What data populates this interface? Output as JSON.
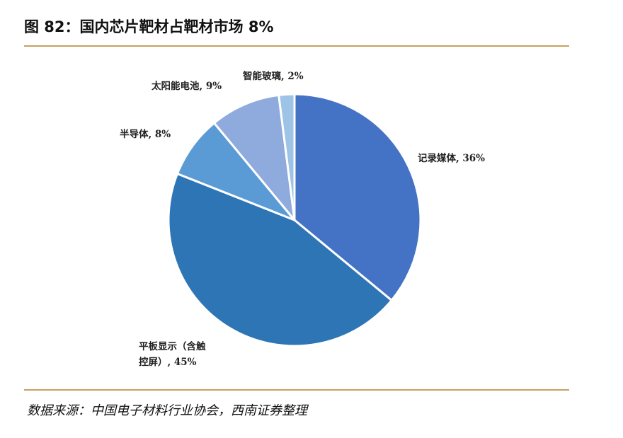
{
  "figure": {
    "title": "图 82：国内芯片靶材占靶材市场 8%",
    "source": "数据来源：中国电子材料行业协会，西南证券整理"
  },
  "chart_data": {
    "type": "pie",
    "slices": [
      {
        "name": "记录媒体",
        "value": 36,
        "label_lines": [
          "记录媒体, 36%"
        ],
        "color": "#4472c4"
      },
      {
        "name": "平板显示（含触控屏）",
        "value": 45,
        "label_lines": [
          "平板显示（含触",
          "控屏）, 45%"
        ],
        "color": "#2e75b6"
      },
      {
        "name": "半导体",
        "value": 8,
        "label_lines": [
          "半导体, 8%"
        ],
        "color": "#5b9bd5"
      },
      {
        "name": "太阳能电池",
        "value": 9,
        "label_lines": [
          "太阳能电池, 9%"
        ],
        "color": "#8faadc"
      },
      {
        "name": "智能玻璃",
        "value": 2,
        "label_lines": [
          "智能玻璃, 2%"
        ],
        "color": "#9dc3e6"
      }
    ]
  }
}
